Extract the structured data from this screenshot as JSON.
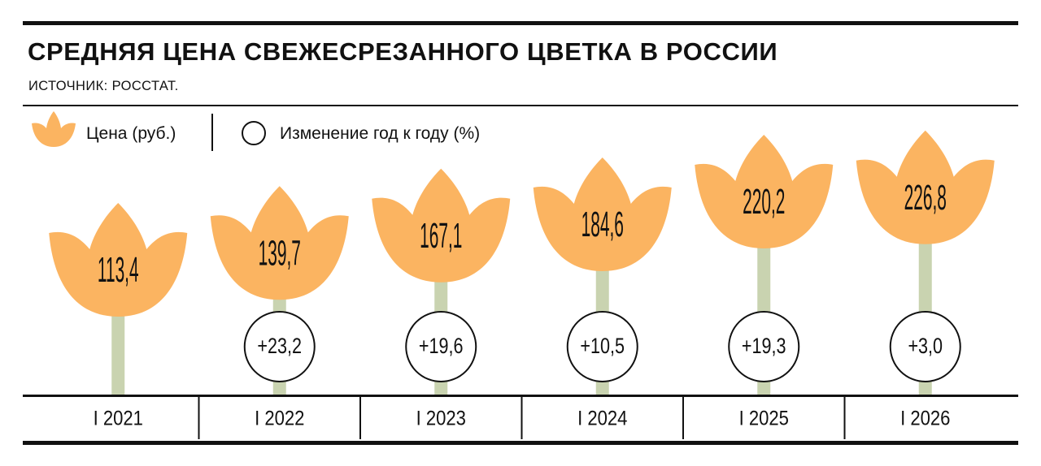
{
  "header": {
    "title": "СРЕДНЯЯ ЦЕНА СВЕЖЕСРЕЗАННОГО ЦВЕТКА В РОССИИ",
    "source": "ИСТОЧНИК: РОССТАТ."
  },
  "legend": {
    "price_label": "Цена (руб.)",
    "change_label": "Изменение год к году (%)"
  },
  "colors": {
    "flower": "#fbb461",
    "stem": "#c9d3b0",
    "line": "#111111"
  },
  "chart_data": {
    "type": "bar",
    "title": "СРЕДНЯЯ ЦЕНА СВЕЖЕСРЕЗАННОГО ЦВЕТКА В РОССИИ",
    "categories": [
      "I 2021",
      "I 2022",
      "I 2023",
      "I 2024",
      "I 2025",
      "I 2026"
    ],
    "series": [
      {
        "name": "Цена (руб.)",
        "values": [
          113.4,
          139.7,
          167.1,
          184.6,
          220.2,
          226.8
        ],
        "labels": [
          "113,4",
          "139,7",
          "167,1",
          "184,6",
          "220,2",
          "226,8"
        ]
      },
      {
        "name": "Изменение год к году (%)",
        "values": [
          null,
          23.2,
          19.6,
          10.5,
          19.3,
          3.0
        ],
        "labels": [
          "",
          "+23,2",
          "+19,6",
          "+10,5",
          "+19,3",
          "+3,0"
        ]
      }
    ]
  }
}
